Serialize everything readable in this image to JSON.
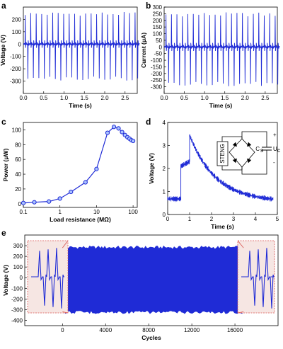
{
  "panels": [
    {
      "id": "a",
      "chart_data": {
        "type": "line",
        "title": "",
        "xlabel": "Time (s)",
        "ylabel": "Voltage (V)",
        "xlim": [
          0,
          2.8
        ],
        "ylim": [
          -400,
          300
        ],
        "xticks": [
          0.0,
          0.5,
          1.0,
          1.5,
          2.0,
          2.5
        ],
        "xtick_labels": [
          "0.0",
          "0.5",
          "1.0",
          "1.5",
          "2.0",
          "2.5"
        ],
        "yticks": [
          -300,
          -200,
          -100,
          0,
          100,
          200
        ],
        "ytick_labels": [
          "-300",
          "-200",
          "-100",
          "0",
          "100",
          "200"
        ],
        "pulse": {
          "period_s": 0.135,
          "first_s": 0.04,
          "pos_peak": 255,
          "neg_peak": -290
        },
        "color": "#1f2bd6"
      }
    },
    {
      "id": "b",
      "chart_data": {
        "type": "line",
        "title": "",
        "xlabel": "Time (s)",
        "ylabel": "Current (μA)",
        "xlim": [
          0,
          2.8
        ],
        "ylim": [
          -350,
          300
        ],
        "xticks": [
          0.0,
          0.5,
          1.0,
          1.5,
          2.0,
          2.5
        ],
        "xtick_labels": [
          "0.0",
          "0.5",
          "1.0",
          "1.5",
          "2.0",
          "2.5"
        ],
        "yticks": [
          -300,
          -250,
          -200,
          -150,
          -100,
          -50,
          0,
          50,
          100,
          150,
          200,
          250,
          300
        ],
        "ytick_labels": [
          "-300",
          "-250",
          "-200",
          "-150",
          "-100",
          "-50",
          "0",
          "50",
          "100",
          "150",
          "200",
          "250",
          "300"
        ],
        "pulse": {
          "period_s": 0.135,
          "first_s": 0.04,
          "pos_peak": 255,
          "neg_peak": -290
        },
        "color": "#1f2bd6"
      }
    },
    {
      "id": "c",
      "chart_data": {
        "type": "line",
        "title": "",
        "xlabel": "Load resistance (MΩ)",
        "ylabel": "Power (μW)",
        "xscale": "log",
        "xlim": [
          0.1,
          130
        ],
        "ylim": [
          -5,
          110
        ],
        "xticks": [
          0.1,
          1,
          10,
          100
        ],
        "xtick_labels": [
          "0.1",
          "1",
          "10",
          "100"
        ],
        "yticks": [
          0,
          20,
          40,
          60,
          80,
          100
        ],
        "ytick_labels": [
          "0",
          "20",
          "40",
          "60",
          "80",
          "100"
        ],
        "x": [
          0.1,
          0.2,
          0.5,
          1,
          2,
          5,
          10,
          20,
          30,
          40,
          50,
          60,
          70,
          80,
          90,
          100
        ],
        "y": [
          1,
          2,
          3,
          7,
          16,
          29,
          47,
          96,
          104,
          102,
          97,
          93,
          90,
          88,
          86,
          85
        ],
        "color": "#1f2bd6"
      }
    },
    {
      "id": "d",
      "chart_data": {
        "type": "line",
        "title": "",
        "xlabel": "Time (s)",
        "ylabel": "Voltage (V)",
        "xlim": [
          0,
          5
        ],
        "ylim": [
          0,
          4
        ],
        "xticks": [
          0,
          1,
          2,
          3,
          4,
          5
        ],
        "xtick_labels": [
          "0",
          "1",
          "2",
          "3",
          "4",
          "5"
        ],
        "yticks": [
          0,
          1,
          2,
          3,
          4
        ],
        "ytick_labels": [
          "0",
          "1",
          "2",
          "3",
          "4"
        ],
        "baseline_v": 0.6,
        "segments": [
          {
            "from_s": 0.0,
            "to_s": 0.6,
            "start_v": 0.68,
            "end_v": 0.68
          },
          {
            "from_s": 0.6,
            "to_s": 1.0,
            "start_v": 2.1,
            "end_v": 2.3
          },
          {
            "from_s": 1.0,
            "to_s": 4.8,
            "start_v": 3.45,
            "end_v": 0.55
          }
        ],
        "color": "#1f2bd6",
        "circuit": {
          "box_label": "STENG",
          "cap_label": "C",
          "cap_sub": "s",
          "volt_label": "U",
          "volt_sub": "c",
          "plus": "+",
          "minus": "-"
        }
      }
    },
    {
      "id": "e",
      "chart_data": {
        "type": "area",
        "title": "",
        "xlabel": "Cycles",
        "ylabel": "Voltage (V)",
        "xlim": [
          -3500,
          20000
        ],
        "ylim": [
          -450,
          400
        ],
        "xticks": [
          0,
          4000,
          8000,
          12000,
          16000
        ],
        "xtick_labels": [
          "0",
          "4000",
          "8000",
          "12000",
          "16000"
        ],
        "yticks": [
          -400,
          -300,
          -200,
          -100,
          0,
          100,
          200,
          300
        ],
        "ytick_labels": [
          "-400",
          "-300",
          "-200",
          "-100",
          "0",
          "100",
          "200",
          "300"
        ],
        "band": {
          "from_cycle": 0,
          "to_cycle": 16800,
          "upper": 280,
          "lower": -320
        },
        "insets": "zoomed pulses at start and end",
        "color": "#1f2bd6"
      }
    }
  ],
  "colors": {
    "trace": "#1f2bd6",
    "inset_fill": "#f6e6e3",
    "inset_border": "#d9534f"
  }
}
